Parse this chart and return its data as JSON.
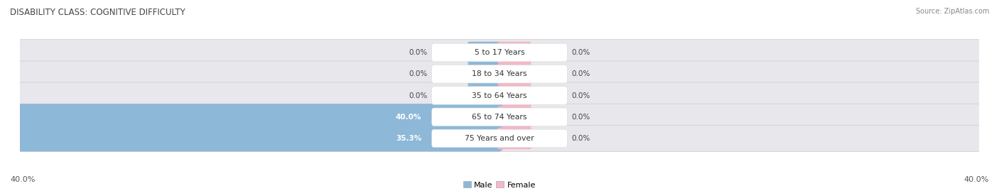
{
  "title": "DISABILITY CLASS: COGNITIVE DIFFICULTY",
  "source": "Source: ZipAtlas.com",
  "categories": [
    "5 to 17 Years",
    "18 to 34 Years",
    "35 to 64 Years",
    "65 to 74 Years",
    "75 Years and over"
  ],
  "male_values": [
    0.0,
    0.0,
    0.0,
    40.0,
    35.3
  ],
  "female_values": [
    0.0,
    0.0,
    0.0,
    0.0,
    0.0
  ],
  "male_color": "#8db8d8",
  "female_color": "#f2b8c6",
  "bar_bg_left_color": "#e8e8ec",
  "bar_bg_right_color": "#eeecf0",
  "axis_limit": 40.0,
  "bar_height": 0.62,
  "title_fontsize": 8.5,
  "label_fontsize": 7.5,
  "category_fontsize": 7.8,
  "axis_label_fontsize": 8,
  "legend_fontsize": 8,
  "fig_width": 14.06,
  "fig_height": 2.69,
  "bar_edge_color": "#d0cdd5",
  "label_text_color": "#444444",
  "category_text_color": "#333333",
  "bottom_label_color": "#555555",
  "title_color": "#444444",
  "source_color": "#888888"
}
